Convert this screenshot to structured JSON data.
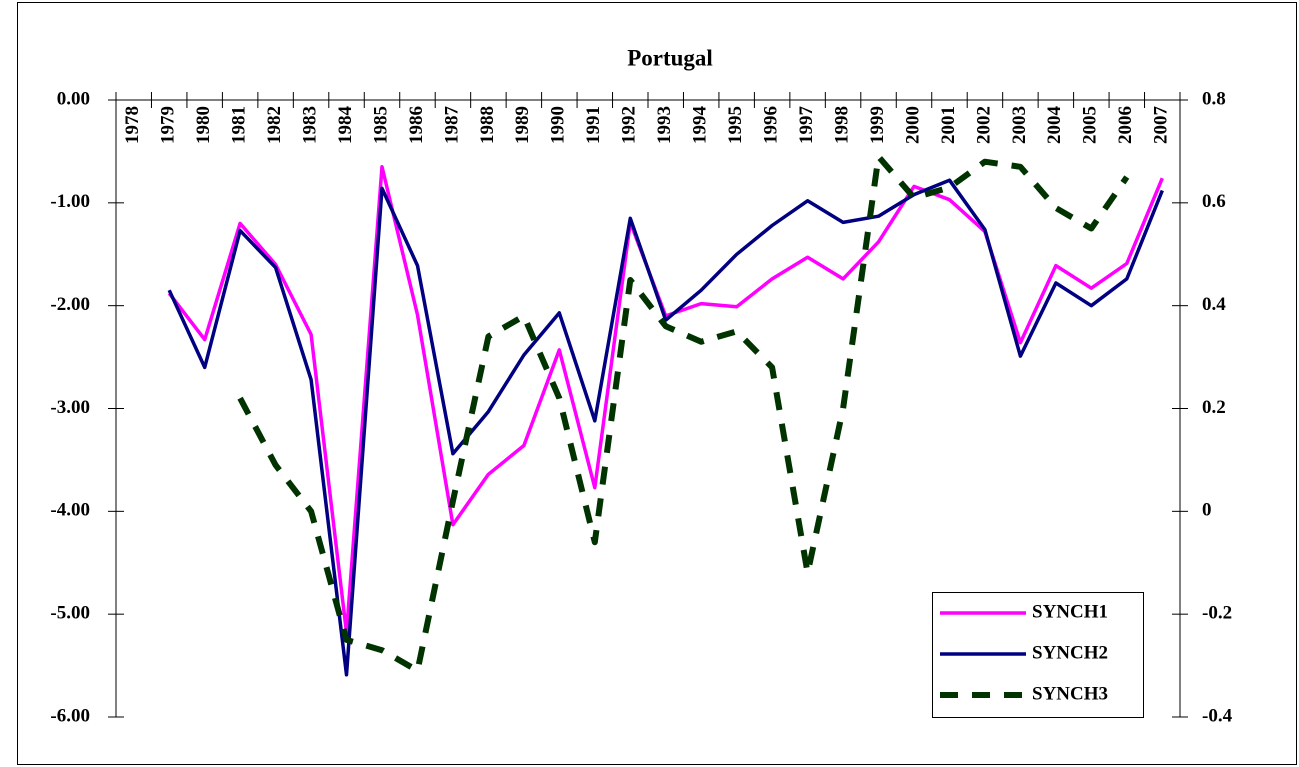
{
  "chart_data": {
    "type": "line",
    "title": "Portugal",
    "categories": [
      "1978",
      "1979",
      "1980",
      "1981",
      "1982",
      "1983",
      "1984",
      "1985",
      "1986",
      "1987",
      "1988",
      "1989",
      "1990",
      "1991",
      "1992",
      "1993",
      "1994",
      "1995",
      "1996",
      "1997",
      "1998",
      "1999",
      "2000",
      "2001",
      "2002",
      "2003",
      "2004",
      "2005",
      "2006",
      "2007"
    ],
    "series": [
      {
        "name": "SYNCH1",
        "color": "#ff00ff",
        "values": [
          null,
          -1.88,
          -2.33,
          -1.2,
          -1.6,
          -2.28,
          -5.18,
          -0.65,
          -2.09,
          -4.13,
          -3.64,
          -3.36,
          -2.43,
          -3.77,
          -1.19,
          -2.1,
          -1.98,
          -2.01,
          -1.74,
          -1.53,
          -1.74,
          -1.38,
          -0.84,
          -0.97,
          -1.28,
          -2.36,
          -1.61,
          -1.83,
          -1.59,
          -0.76
        ]
      },
      {
        "name": "SYNCH2",
        "color": "#000080",
        "values": [
          null,
          -1.85,
          -2.6,
          -1.27,
          -1.63,
          -2.72,
          -5.59,
          -0.86,
          -1.61,
          -3.44,
          -3.03,
          -2.48,
          -2.07,
          -3.12,
          -1.15,
          -2.14,
          -1.85,
          -1.5,
          -1.22,
          -0.98,
          -1.19,
          -1.13,
          -0.92,
          -0.78,
          -1.26,
          -2.49,
          -1.78,
          -2.0,
          -1.74,
          -0.88
        ]
      },
      {
        "name": "SYNCH3",
        "color": "#003300",
        "axis": "y2",
        "dashed": true,
        "values": [
          null,
          null,
          null,
          0.22,
          0.09,
          0.0,
          -0.25,
          -0.27,
          -0.31,
          0.02,
          0.34,
          0.38,
          0.22,
          -0.06,
          0.45,
          0.36,
          0.33,
          0.35,
          0.28,
          -0.12,
          0.2,
          0.69,
          0.61,
          0.63,
          0.68,
          0.67,
          0.59,
          0.55,
          0.65,
          null
        ]
      }
    ],
    "ylim": [
      -6,
      0
    ],
    "yticks": [
      {
        "value": 0,
        "label": "0.00"
      },
      {
        "value": -1,
        "label": "-1.00"
      },
      {
        "value": -2,
        "label": "-2.00"
      },
      {
        "value": -3,
        "label": "-3.00"
      },
      {
        "value": -4,
        "label": "-4.00"
      },
      {
        "value": -5,
        "label": "-5.00"
      },
      {
        "value": -6,
        "label": "-6.00"
      }
    ],
    "y2lim": [
      -0.4,
      0.8
    ],
    "y2ticks": [
      0.8,
      0.6,
      0.4,
      0.2,
      0,
      -0.2,
      -0.4
    ],
    "legend": "lower right",
    "grid": false
  }
}
